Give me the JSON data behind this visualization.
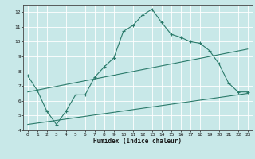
{
  "title": "",
  "xlabel": "Humidex (Indice chaleur)",
  "bg_color": "#c8e8e8",
  "grid_color": "#ffffff",
  "line_color": "#2a7a6a",
  "xlim": [
    -0.5,
    23.5
  ],
  "ylim": [
    4,
    12.5
  ],
  "xticks": [
    0,
    1,
    2,
    3,
    4,
    5,
    6,
    7,
    8,
    9,
    10,
    11,
    12,
    13,
    14,
    15,
    16,
    17,
    18,
    19,
    20,
    21,
    22,
    23
  ],
  "yticks": [
    4,
    5,
    6,
    7,
    8,
    9,
    10,
    11,
    12
  ],
  "main_x": [
    0,
    1,
    2,
    3,
    4,
    5,
    6,
    7,
    8,
    9,
    10,
    11,
    12,
    13,
    14,
    15,
    16,
    17,
    18,
    19,
    20,
    21,
    22,
    23
  ],
  "main_y": [
    7.7,
    6.7,
    5.3,
    4.4,
    5.3,
    6.4,
    6.4,
    7.6,
    8.3,
    8.9,
    10.7,
    11.1,
    11.8,
    12.2,
    11.3,
    10.5,
    10.3,
    10.0,
    9.9,
    9.4,
    8.5,
    7.2,
    6.6,
    6.6
  ],
  "upper_line_x": [
    0,
    23
  ],
  "upper_line_y": [
    6.6,
    9.5
  ],
  "lower_line_x": [
    0,
    23
  ],
  "lower_line_y": [
    4.4,
    6.5
  ],
  "xlabel_fontsize": 5.5,
  "ylabel_fontsize": 5.5,
  "tick_fontsize": 4.5
}
